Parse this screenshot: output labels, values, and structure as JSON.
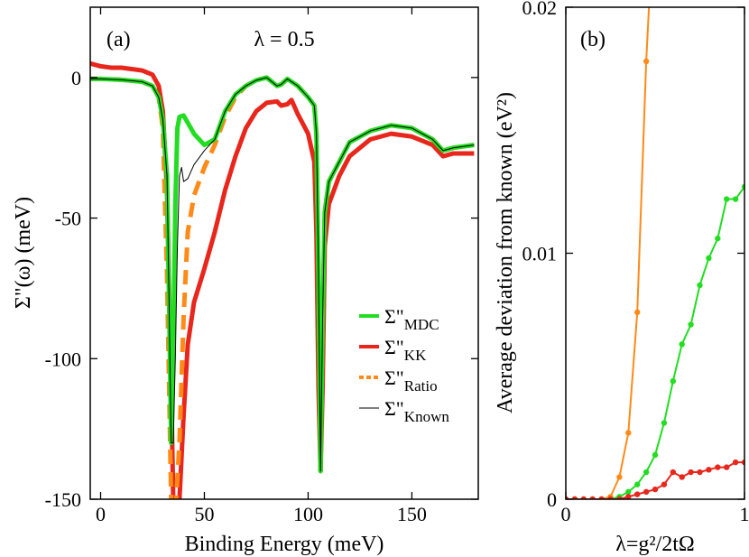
{
  "chart_data": [
    {
      "type": "line",
      "panel_label": "(a)",
      "annotation": "λ = 0.5",
      "xlabel": "Binding Energy   (meV)",
      "ylabel": "Σ\"(ω)   (meV)",
      "xlim": [
        -5,
        182
      ],
      "ylim": [
        -150,
        25
      ],
      "xticks": [
        0,
        50,
        100,
        150
      ],
      "yticks": [
        -150,
        -100,
        -50,
        0
      ],
      "legend_placement": "bottom-right",
      "series": [
        {
          "name": "Σ\"MDC",
          "color": "#22dd22",
          "x": [
            -5,
            0,
            10,
            20,
            25,
            28,
            30,
            32,
            33,
            34,
            35,
            36,
            37,
            38,
            40,
            45,
            50,
            55,
            60,
            65,
            70,
            75,
            80,
            85,
            87,
            90,
            95,
            100,
            103,
            104,
            105,
            106,
            107,
            108,
            110,
            115,
            120,
            130,
            140,
            150,
            160,
            165,
            170,
            180
          ],
          "y": [
            -0.5,
            -0.5,
            -0.8,
            -1.5,
            -3,
            -7,
            -15,
            -35,
            -80,
            -130,
            -100,
            -45,
            -18,
            -14,
            -13.5,
            -20,
            -24,
            -22,
            -12,
            -6,
            -3,
            -1,
            0,
            -3,
            -2.5,
            -0.5,
            -3,
            -7,
            -10,
            -20,
            -70,
            -140,
            -85,
            -48,
            -37,
            -30,
            -23,
            -19,
            -17,
            -18,
            -22,
            -26,
            -25,
            -24
          ]
        },
        {
          "name": "Σ\"KK",
          "color": "#e8261c",
          "x": [
            -5,
            0,
            5,
            10,
            15,
            20,
            25,
            28,
            30,
            32,
            34,
            35,
            36,
            37,
            38,
            40,
            42,
            45,
            50,
            55,
            60,
            65,
            70,
            75,
            80,
            85,
            87,
            90,
            92,
            95,
            100,
            103,
            104,
            105,
            106,
            107,
            108,
            110,
            115,
            120,
            130,
            140,
            150,
            160,
            165,
            170,
            180
          ],
          "y": [
            5,
            4,
            3.5,
            3.5,
            3,
            2.5,
            1,
            -3,
            -12,
            -40,
            -110,
            -150,
            -155,
            -155,
            -150,
            -120,
            -95,
            -80,
            -68,
            -55,
            -40,
            -28,
            -18,
            -12,
            -9,
            -8.5,
            -10,
            -9.5,
            -8,
            -13,
            -20,
            -30,
            -55,
            -110,
            -140,
            -110,
            -60,
            -45,
            -35,
            -28,
            -22,
            -20,
            -21,
            -24,
            -28,
            -27,
            -27
          ]
        },
        {
          "name": "Σ\"Ratio",
          "color": "#ff8a18",
          "dashed": true,
          "x": [
            -5,
            0,
            10,
            20,
            25,
            28,
            30,
            32,
            34,
            36,
            38,
            40,
            42,
            45,
            50,
            55,
            60,
            65,
            70,
            75,
            80,
            85,
            87,
            90,
            95,
            100,
            103,
            104,
            105,
            106,
            107,
            108,
            110,
            115,
            120,
            130,
            140,
            150,
            160,
            165,
            170,
            180
          ],
          "y": [
            -0.5,
            -0.5,
            -0.8,
            -1.5,
            -3,
            -7,
            -18,
            -70,
            -150,
            -155,
            -130,
            -85,
            -55,
            -42,
            -32,
            -24,
            -14,
            -7,
            -3,
            -1,
            0,
            -3,
            -2.5,
            -0.5,
            -3,
            -7,
            -10,
            -20,
            -70,
            -140,
            -85,
            -48,
            -37,
            -30,
            -23,
            -19,
            -17,
            -18,
            -22,
            -26,
            -25,
            -24
          ]
        },
        {
          "name": "Σ\"Known",
          "color": "#000000",
          "x": [
            -5,
            0,
            10,
            20,
            25,
            28,
            30,
            32,
            33,
            34,
            35,
            36,
            37,
            38,
            39,
            40,
            42,
            45,
            50,
            55,
            60,
            65,
            70,
            75,
            80,
            85,
            87,
            90,
            95,
            100,
            103,
            104,
            105,
            106,
            107,
            108,
            110,
            115,
            120,
            130,
            140,
            150,
            160,
            165,
            170,
            180
          ],
          "y": [
            -0.5,
            -0.5,
            -0.8,
            -1.5,
            -3,
            -7,
            -15,
            -35,
            -80,
            -130,
            -130,
            -100,
            -60,
            -35,
            -32,
            -37,
            -36,
            -31,
            -26,
            -22,
            -12,
            -6,
            -3,
            -1,
            0,
            -3,
            -2.5,
            -0.5,
            -3,
            -7,
            -10,
            -20,
            -70,
            -140,
            -85,
            -48,
            -37,
            -30,
            -23,
            -19,
            -17,
            -18,
            -22,
            -26,
            -25,
            -24
          ]
        }
      ]
    },
    {
      "type": "line",
      "panel_label": "(b)",
      "xlabel": "λ=g²/2tΩ",
      "ylabel": "Average deviation from known   (eV²)",
      "xlim": [
        0,
        1
      ],
      "ylim": [
        0,
        0.02
      ],
      "xticks": [
        0,
        1
      ],
      "yticks": [
        0,
        0.01,
        0.02
      ],
      "series": [
        {
          "color": "#ff8a18",
          "x": [
            0,
            0.05,
            0.1,
            0.15,
            0.2,
            0.25,
            0.3,
            0.35,
            0.4,
            0.45,
            0.5
          ],
          "y": [
            0,
            0,
            0,
            0,
            0,
            0.0001,
            0.0009,
            0.0027,
            0.0076,
            0.0178,
            0.025
          ]
        },
        {
          "color": "#22dd22",
          "x": [
            0,
            0.05,
            0.1,
            0.15,
            0.2,
            0.25,
            0.3,
            0.35,
            0.4,
            0.45,
            0.5,
            0.55,
            0.6,
            0.65,
            0.7,
            0.75,
            0.8,
            0.85,
            0.9,
            0.95,
            1.0
          ],
          "y": [
            0,
            0,
            0,
            0,
            0,
            0,
            0.0001,
            0.0003,
            0.0006,
            0.0011,
            0.0018,
            0.0031,
            0.0048,
            0.0063,
            0.0071,
            0.0087,
            0.0098,
            0.0106,
            0.0122,
            0.0122,
            0.0127
          ]
        },
        {
          "color": "#e8261c",
          "x": [
            0,
            0.05,
            0.1,
            0.15,
            0.2,
            0.25,
            0.3,
            0.35,
            0.4,
            0.45,
            0.5,
            0.55,
            0.6,
            0.65,
            0.7,
            0.75,
            0.8,
            0.85,
            0.9,
            0.95,
            1.0
          ],
          "y": [
            0,
            0,
            0,
            0,
            0,
            0,
            0,
            0.0001,
            0.0002,
            0.0003,
            0.0004,
            0.0006,
            0.0011,
            0.0009,
            0.0011,
            0.0011,
            0.0012,
            0.0013,
            0.0013,
            0.0015,
            0.0015
          ]
        }
      ]
    }
  ]
}
